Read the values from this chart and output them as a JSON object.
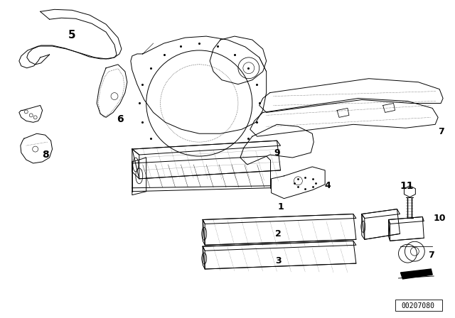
{
  "bg_color": "#ffffff",
  "fig_width": 6.4,
  "fig_height": 4.48,
  "dpi": 100,
  "diagram_id": "00207080",
  "lc": "#000000",
  "lw": 0.7
}
